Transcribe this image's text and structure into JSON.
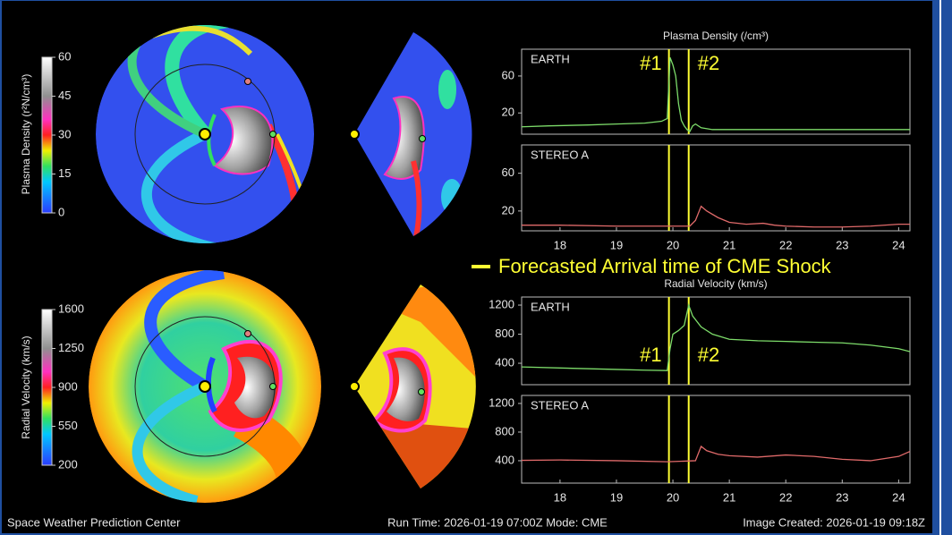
{
  "chart_data": [
    {
      "type": "line",
      "title": "Plasma Density (/cm³)",
      "xlim": [
        17.32,
        24.2
      ],
      "ylim": [
        -3,
        89
      ],
      "yticks": [
        20,
        60
      ],
      "shock_labels": true,
      "x": [
        17.32,
        17.8,
        18.5,
        19.0,
        19.5,
        19.8,
        19.9,
        19.95,
        20.0,
        20.05,
        20.1,
        20.15,
        20.2,
        20.25,
        20.3,
        20.35,
        20.4,
        20.5,
        20.7,
        21.0,
        21.5,
        22,
        23,
        24.2
      ],
      "series": [
        {
          "name": "EARTH",
          "color": "#7ddc6a",
          "values": [
            5,
            6,
            7,
            8,
            9,
            11,
            14,
            80,
            72,
            60,
            30,
            12,
            6,
            2,
            0,
            6,
            8,
            4,
            2,
            2,
            2,
            2,
            2,
            2
          ]
        }
      ]
    },
    {
      "type": "line",
      "xlim": [
        17.32,
        24.2
      ],
      "ylim": [
        -1,
        90
      ],
      "yticks": [
        20,
        60
      ],
      "xticks": [
        18,
        19,
        20,
        21,
        22,
        23,
        24
      ],
      "x": [
        17.32,
        18,
        19,
        19.9,
        20.3,
        20.4,
        20.5,
        20.6,
        20.8,
        21,
        21.3,
        21.6,
        21.8,
        22,
        22.5,
        23,
        23.5,
        24,
        24.2
      ],
      "series": [
        {
          "name": "STEREO A",
          "color": "#e06a6a",
          "values": [
            5,
            5,
            4,
            4,
            4,
            10,
            25,
            20,
            13,
            8,
            6,
            7,
            5,
            4,
            3,
            3,
            4,
            6,
            6
          ]
        }
      ]
    },
    {
      "type": "line",
      "title": "Radial Velocity (km/s)",
      "xlim": [
        17.32,
        24.2
      ],
      "ylim": [
        105,
        1311
      ],
      "yticks": [
        400,
        800,
        1200
      ],
      "shock_labels": true,
      "x": [
        17.32,
        18,
        19,
        19.5,
        19.9,
        19.95,
        20.0,
        20.1,
        20.2,
        20.28,
        20.35,
        20.5,
        20.7,
        21,
        21.5,
        22,
        22.5,
        23,
        23.5,
        24,
        24.2
      ],
      "series": [
        {
          "name": "EARTH",
          "color": "#7ddc6a",
          "values": [
            350,
            335,
            315,
            305,
            300,
            600,
            800,
            850,
            920,
            1200,
            1050,
            900,
            800,
            730,
            710,
            700,
            690,
            680,
            650,
            600,
            560
          ]
        }
      ]
    },
    {
      "type": "line",
      "xlim": [
        17.32,
        24.2
      ],
      "ylim": [
        87,
        1312
      ],
      "yticks": [
        400,
        800,
        1200
      ],
      "xticks": [
        18,
        19,
        20,
        21,
        22,
        23,
        24
      ],
      "x": [
        17.32,
        18,
        19,
        19.9,
        20.4,
        20.5,
        20.6,
        20.8,
        21,
        21.5,
        22,
        22.5,
        23,
        23.5,
        24,
        24.2
      ],
      "series": [
        {
          "name": "STEREO A",
          "color": "#e06a6a",
          "values": [
            405,
            410,
            400,
            385,
            400,
            600,
            540,
            490,
            470,
            450,
            480,
            460,
            420,
            400,
            460,
            530
          ]
        }
      ]
    }
  ],
  "shock_times": {
    "x": [
      19.93,
      20.28
    ],
    "labels": [
      "#1",
      "#2"
    ],
    "color": "#ffff33"
  },
  "annotation": "Forecasted Arrival time of CME Shock",
  "colorbars": [
    {
      "label": "Plasma Density (r²N/cm³)",
      "lim": [
        0,
        60
      ],
      "ticks": [
        0,
        15,
        30,
        45,
        60
      ]
    },
    {
      "label": "Radial Velocity (km/s)",
      "lim": [
        200,
        1600
      ],
      "ticks": [
        200,
        550,
        900,
        1250,
        1600
      ]
    }
  ],
  "footer": {
    "left": "Space Weather Prediction Center",
    "center": "Run Time: 2026-01-19 07:00Z  Mode: CME",
    "right": "Image Created: 2026-01-19 09:18Z"
  }
}
